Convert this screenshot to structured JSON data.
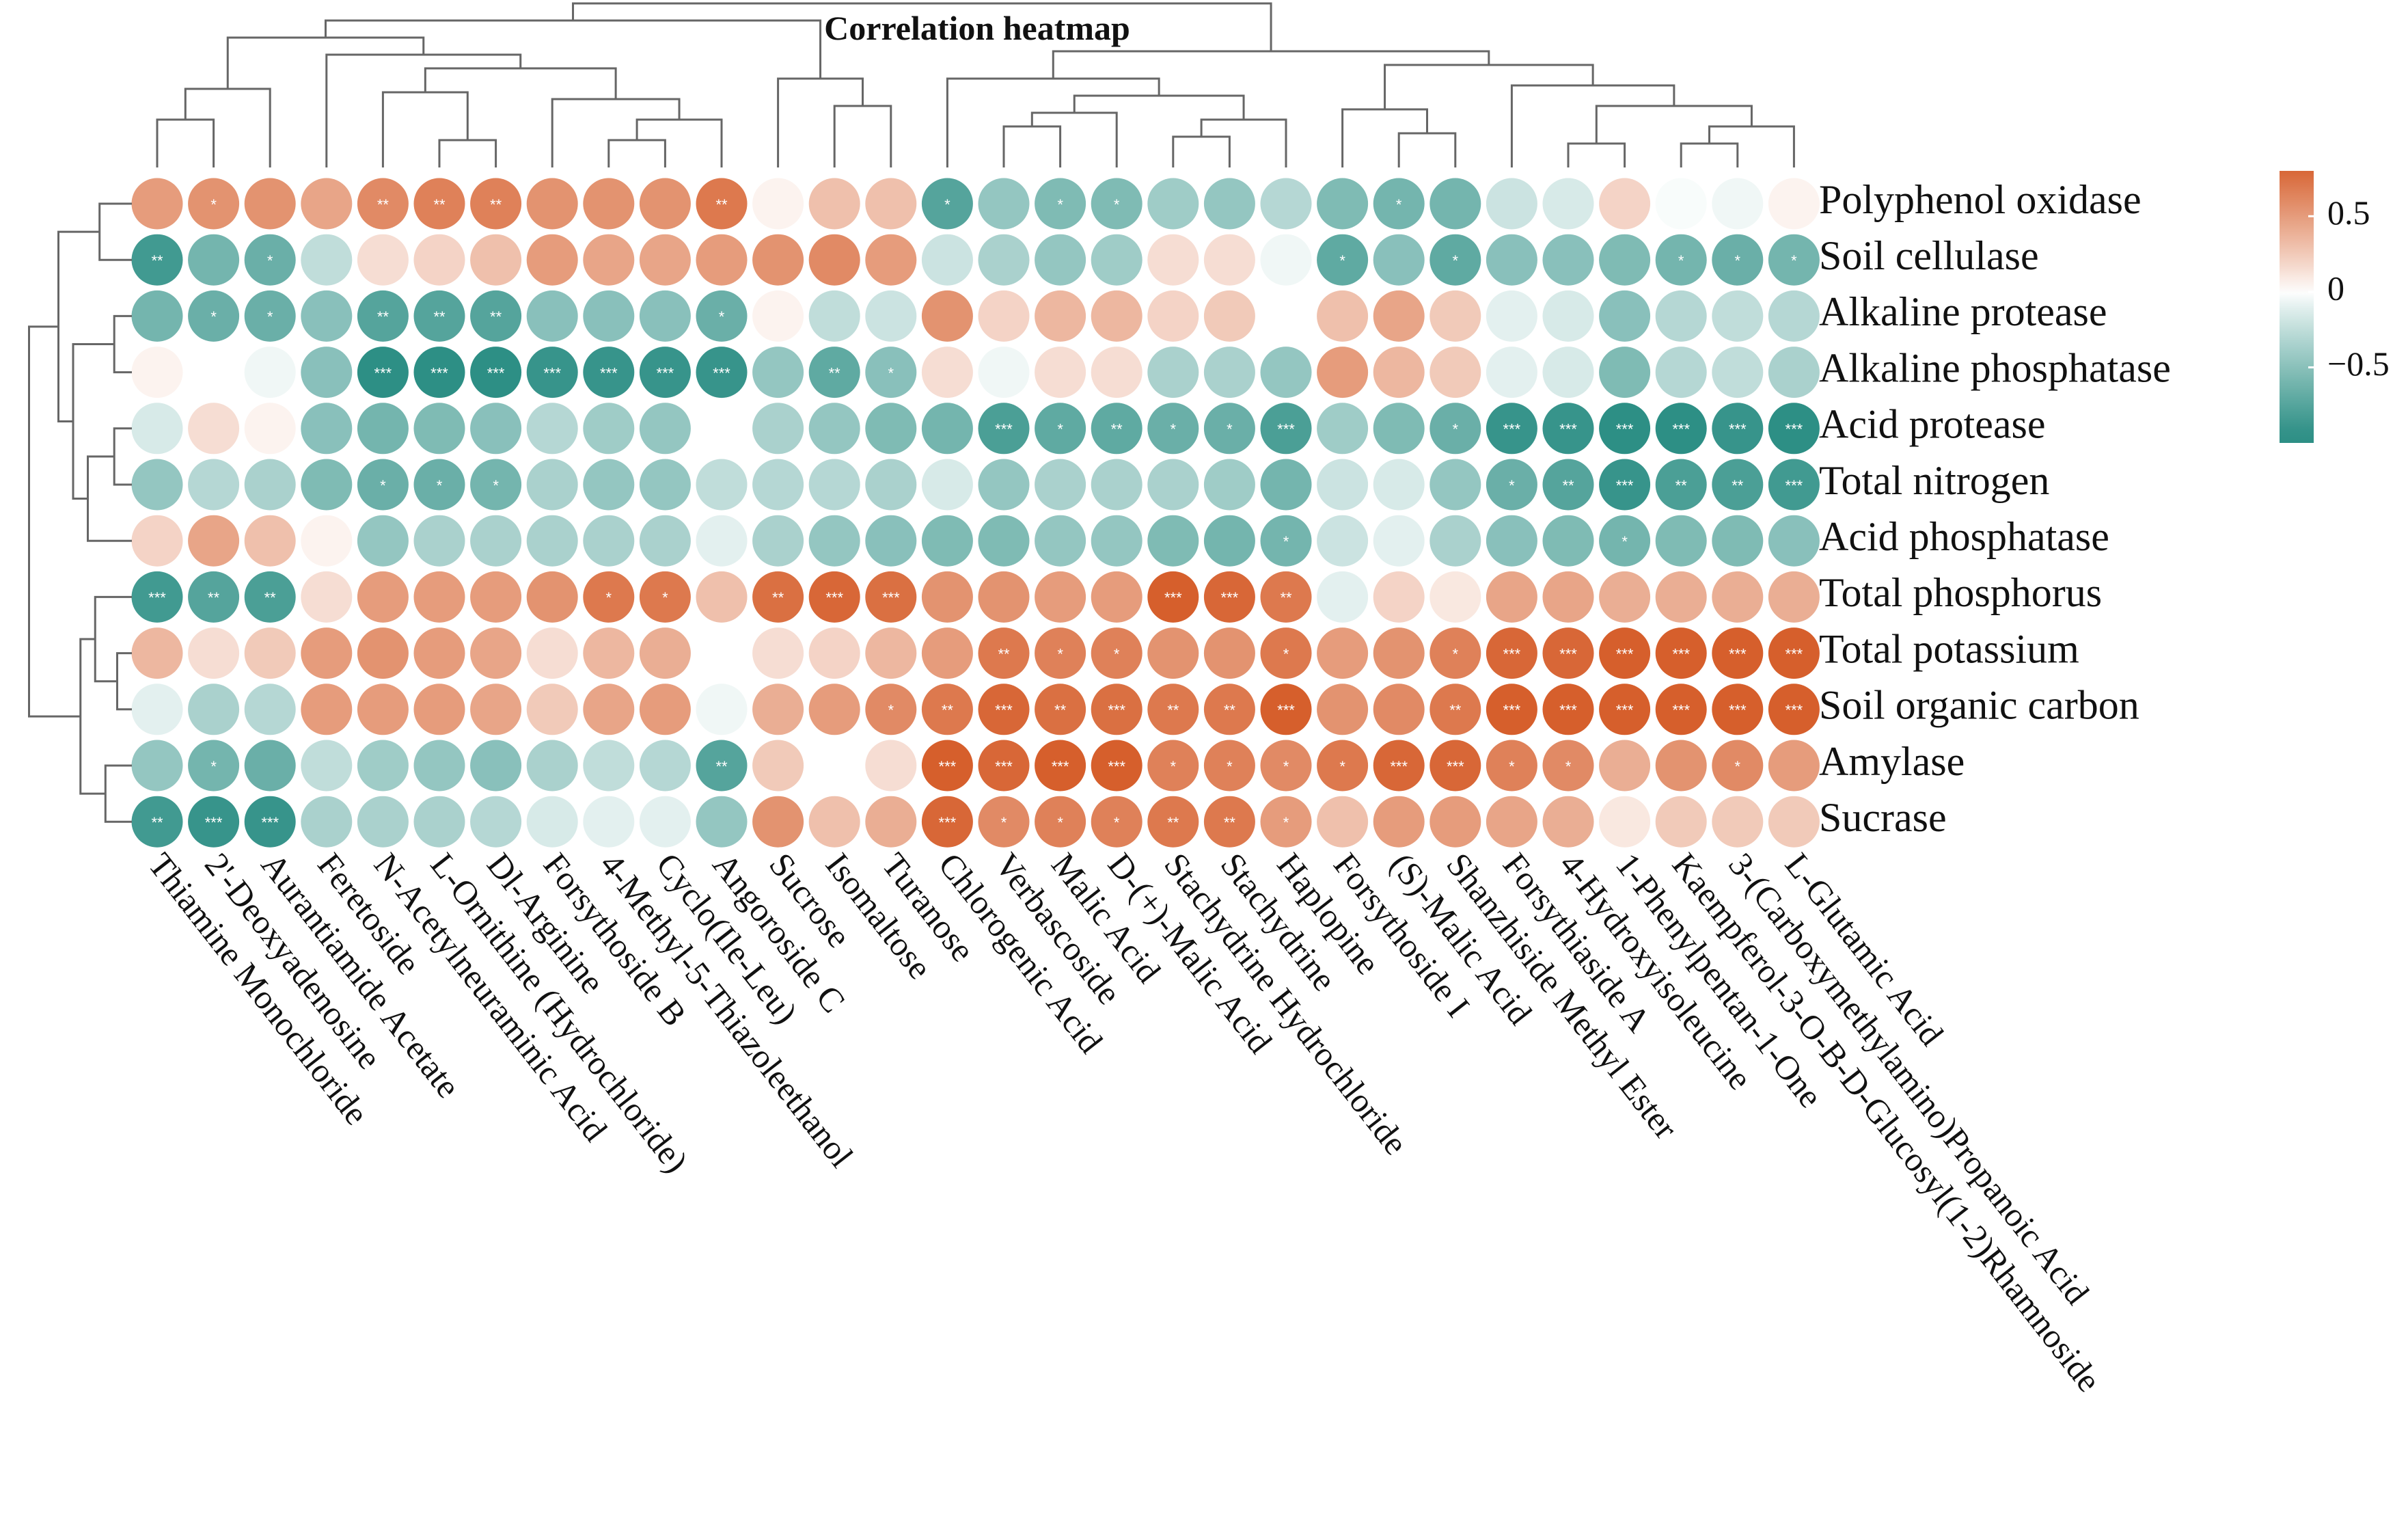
{
  "chart_data": {
    "type": "heatmap",
    "title": "Correlation heatmap",
    "x": [
      "Thiamine Monochloride",
      "2'-Deoxyadenosine",
      "Aurantiamide Acetate",
      "Feretoside",
      "N-Acetylneuraminic Acid",
      "L-Ornithine (Hydrochloride)",
      "Dl-Arginine",
      "Forsythoside B",
      "4-Methyl-5-Thiazoleethanol",
      "Cyclo(Ile-Leu)",
      "Angoroside C",
      "Sucrose",
      "Isomaltose",
      "Turanose",
      "Chlorogenic Acid",
      "Verbascoside",
      "Malic Acid",
      "D-(+)-Malic Acid",
      "Stachydrine Hydrochloride",
      "Stachydrine",
      "Haplopine",
      "Forsythoside I",
      "(S)-Malic Acid",
      "Shanzhiside Methyl Ester",
      "Forsythiaside A",
      "4-Hydroxyisoleucine",
      "1-Phenylpentan-1-One",
      "Kaempferol-3-O-B-D-Glucosyl(1-2)Rhamnoside",
      "3-(Carboxymethylamino)Propanoic Acid",
      "L-Glutamic Acid"
    ],
    "y": [
      "Polyphenol oxidase",
      "Soil cellulase",
      "Alkaline protease",
      "Alkaline phosphatase",
      "Acid protease",
      "Total nitrogen",
      "Acid phosphatase",
      "Total phosphorus",
      "Total potassium",
      "Soil organic carbon",
      "Amylase",
      "Sucrase"
    ],
    "values": [
      [
        0.5,
        0.55,
        0.55,
        0.45,
        0.6,
        0.65,
        0.65,
        0.55,
        0.55,
        0.55,
        0.7,
        0.05,
        0.3,
        0.3,
        -0.75,
        -0.45,
        -0.55,
        -0.55,
        -0.4,
        -0.45,
        -0.3,
        -0.55,
        -0.6,
        -0.6,
        -0.2,
        -0.15,
        0.2,
        -0.02,
        -0.05,
        0.05
      ],
      [
        -0.85,
        -0.6,
        -0.65,
        -0.25,
        0.15,
        0.2,
        0.3,
        0.5,
        0.45,
        0.45,
        0.5,
        0.55,
        0.6,
        0.5,
        -0.2,
        -0.35,
        -0.45,
        -0.4,
        0.15,
        0.15,
        -0.05,
        -0.7,
        -0.5,
        -0.7,
        -0.5,
        -0.5,
        -0.55,
        -0.6,
        -0.65,
        -0.6
      ],
      [
        -0.6,
        -0.65,
        -0.65,
        -0.5,
        -0.75,
        -0.75,
        -0.75,
        -0.5,
        -0.5,
        -0.5,
        -0.65,
        0.05,
        -0.25,
        -0.2,
        0.55,
        0.2,
        0.35,
        0.35,
        0.2,
        0.25,
        0.0,
        0.3,
        0.45,
        0.25,
        -0.1,
        -0.15,
        -0.5,
        -0.3,
        -0.25,
        -0.3
      ],
      [
        0.05,
        0.0,
        -0.05,
        -0.5,
        -0.95,
        -0.95,
        -0.95,
        -0.9,
        -0.9,
        -0.9,
        -0.9,
        -0.45,
        -0.7,
        -0.5,
        0.15,
        -0.05,
        0.15,
        0.15,
        -0.35,
        -0.35,
        -0.45,
        0.5,
        0.35,
        0.25,
        -0.1,
        -0.15,
        -0.55,
        -0.3,
        -0.25,
        -0.35
      ],
      [
        -0.15,
        0.15,
        0.05,
        -0.5,
        -0.6,
        -0.55,
        -0.5,
        -0.3,
        -0.4,
        -0.45,
        0.0,
        -0.35,
        -0.45,
        -0.55,
        -0.6,
        -0.8,
        -0.7,
        -0.7,
        -0.65,
        -0.65,
        -0.8,
        -0.4,
        -0.55,
        -0.65,
        -0.9,
        -0.9,
        -0.95,
        -0.95,
        -0.9,
        -0.95
      ],
      [
        -0.45,
        -0.3,
        -0.35,
        -0.55,
        -0.65,
        -0.65,
        -0.6,
        -0.35,
        -0.45,
        -0.45,
        -0.25,
        -0.3,
        -0.3,
        -0.35,
        -0.15,
        -0.45,
        -0.35,
        -0.35,
        -0.35,
        -0.4,
        -0.6,
        -0.2,
        -0.15,
        -0.45,
        -0.65,
        -0.75,
        -0.9,
        -0.8,
        -0.8,
        -0.85
      ],
      [
        0.2,
        0.45,
        0.3,
        0.05,
        -0.45,
        -0.35,
        -0.35,
        -0.35,
        -0.35,
        -0.35,
        -0.1,
        -0.35,
        -0.45,
        -0.5,
        -0.55,
        -0.55,
        -0.45,
        -0.45,
        -0.55,
        -0.6,
        -0.6,
        -0.2,
        -0.1,
        -0.35,
        -0.5,
        -0.55,
        -0.6,
        -0.55,
        -0.55,
        -0.5
      ],
      [
        -0.85,
        -0.75,
        -0.8,
        0.15,
        0.5,
        0.5,
        0.5,
        0.55,
        0.7,
        0.7,
        0.3,
        0.75,
        0.8,
        0.75,
        0.55,
        0.55,
        0.5,
        0.5,
        0.85,
        0.8,
        0.7,
        -0.1,
        0.2,
        0.1,
        0.45,
        0.45,
        0.4,
        0.4,
        0.4,
        0.4
      ],
      [
        0.35,
        0.15,
        0.25,
        0.5,
        0.55,
        0.5,
        0.45,
        0.15,
        0.35,
        0.4,
        0.0,
        0.15,
        0.2,
        0.35,
        0.5,
        0.7,
        0.65,
        0.65,
        0.55,
        0.55,
        0.7,
        0.5,
        0.55,
        0.65,
        0.8,
        0.8,
        0.85,
        0.85,
        0.85,
        0.85
      ],
      [
        -0.1,
        -0.35,
        -0.3,
        0.5,
        0.5,
        0.5,
        0.45,
        0.25,
        0.45,
        0.5,
        -0.05,
        0.4,
        0.5,
        0.6,
        0.7,
        0.8,
        0.75,
        0.75,
        0.7,
        0.7,
        0.85,
        0.55,
        0.6,
        0.7,
        0.85,
        0.85,
        0.85,
        0.85,
        0.85,
        0.85
      ],
      [
        -0.45,
        -0.6,
        -0.65,
        -0.25,
        -0.4,
        -0.45,
        -0.5,
        -0.35,
        -0.25,
        -0.3,
        -0.75,
        0.25,
        0.0,
        0.15,
        0.85,
        0.8,
        0.85,
        0.85,
        0.65,
        0.65,
        0.6,
        0.7,
        0.8,
        0.8,
        0.65,
        0.6,
        0.4,
        0.55,
        0.6,
        0.5
      ],
      [
        -0.85,
        -0.9,
        -0.9,
        -0.35,
        -0.35,
        -0.35,
        -0.3,
        -0.15,
        -0.1,
        -0.1,
        -0.45,
        0.55,
        0.3,
        0.4,
        0.8,
        0.6,
        0.65,
        0.65,
        0.7,
        0.7,
        0.5,
        0.3,
        0.5,
        0.5,
        0.45,
        0.4,
        0.1,
        0.25,
        0.25,
        0.25
      ]
    ],
    "significance": [
      [
        "",
        "*",
        "",
        "",
        "**",
        "**",
        "**",
        "",
        "",
        "",
        "**",
        "",
        "",
        "",
        "*",
        "",
        "*",
        "*",
        "",
        "",
        "",
        "",
        "*",
        "",
        "",
        "",
        "",
        "",
        "",
        ""
      ],
      [
        "**",
        "",
        "*",
        "",
        "",
        "",
        "",
        "",
        "",
        "",
        "",
        "",
        "",
        "",
        "",
        "",
        "",
        "",
        "",
        "",
        "",
        "*",
        "",
        "*",
        "",
        "",
        "",
        "*",
        "*",
        "*"
      ],
      [
        "",
        "*",
        "*",
        "",
        "**",
        "**",
        "**",
        "",
        "",
        "",
        "*",
        "",
        "",
        "",
        "",
        "",
        "",
        "",
        "",
        "",
        "",
        "",
        "",
        "",
        "",
        "",
        "",
        "",
        "",
        ""
      ],
      [
        "",
        "",
        "",
        "",
        "***",
        "***",
        "***",
        "***",
        "***",
        "***",
        "***",
        "",
        "**",
        "*",
        "",
        "",
        "",
        "",
        "",
        "",
        "",
        "",
        "",
        "",
        "",
        "",
        "",
        "",
        "",
        ""
      ],
      [
        "",
        "",
        "",
        "",
        "",
        "",
        "",
        "",
        "",
        "",
        "",
        "",
        "",
        "",
        "",
        "***",
        "*",
        "**",
        "*",
        "*",
        "***",
        "",
        "",
        "*",
        "***",
        "***",
        "***",
        "***",
        "***",
        "***"
      ],
      [
        "",
        "",
        "",
        "",
        "*",
        "*",
        "*",
        "",
        "",
        "",
        "",
        "",
        "",
        "",
        "",
        "",
        "",
        "",
        "",
        "",
        "",
        "",
        "",
        "",
        "*",
        "**",
        "***",
        "**",
        "**",
        "***"
      ],
      [
        "",
        "",
        "",
        "",
        "",
        "",
        "",
        "",
        "",
        "",
        "",
        "",
        "",
        "",
        "",
        "",
        "",
        "",
        "",
        "",
        "*",
        "",
        "",
        "",
        "",
        "",
        "*",
        "",
        "",
        ""
      ],
      [
        "***",
        "**",
        "**",
        "",
        "",
        "",
        "",
        "",
        "*",
        "*",
        "",
        "**",
        "***",
        "***",
        "",
        "",
        "",
        "",
        "***",
        "***",
        "**",
        "",
        "",
        "",
        "",
        "",
        "",
        "",
        "",
        ""
      ],
      [
        "",
        "",
        "",
        "",
        "",
        "",
        "",
        "",
        "",
        "",
        "",
        "",
        "",
        "",
        "",
        "**",
        "*",
        "*",
        "",
        "",
        "*",
        "",
        "",
        "*",
        "***",
        "***",
        "***",
        "***",
        "***",
        "***"
      ],
      [
        "",
        "",
        "",
        "",
        "",
        "",
        "",
        "",
        "",
        "",
        "",
        "",
        "",
        "*",
        "**",
        "***",
        "**",
        "***",
        "**",
        "**",
        "***",
        "",
        "",
        "**",
        "***",
        "***",
        "***",
        "***",
        "***",
        "***"
      ],
      [
        "",
        "*",
        "",
        "",
        "",
        "",
        "",
        "",
        "",
        "",
        "**",
        "",
        "",
        "",
        "***",
        "***",
        "***",
        "***",
        "*",
        "*",
        "*",
        "*",
        "***",
        "***",
        "*",
        "*",
        "",
        "",
        "*",
        ""
      ],
      [
        "**",
        "***",
        "***",
        "",
        "",
        "",
        "",
        "",
        "",
        "",
        "",
        "",
        "",
        "",
        "***",
        "*",
        "*",
        "*",
        "**",
        "**",
        "*",
        "",
        "",
        "",
        "",
        "",
        "",
        "",
        "",
        ""
      ]
    ],
    "colorbar": {
      "range": [
        -1,
        0.8
      ],
      "ticks": [
        {
          "value": 0.5,
          "label": "0.5"
        },
        {
          "value": 0,
          "label": "0"
        },
        {
          "value": -0.5,
          "label": "−0.5"
        }
      ]
    },
    "colors": {
      "positive": "#D65F2C",
      "neutral": "#FFFFFF",
      "negative": "#2D8F85",
      "dendrogram": "#666666",
      "significance_text": "#FFFFFF"
    },
    "dendrogram_top": [
      [
        0,
        1,
        0.14
      ],
      [
        2,
        30,
        0.23
      ],
      [
        5,
        6,
        0.08
      ],
      [
        8,
        9,
        0.08
      ],
      [
        33,
        10,
        0.14
      ],
      [
        7,
        34,
        0.2
      ],
      [
        4,
        32,
        0.22
      ],
      [
        36,
        35,
        0.29
      ],
      [
        3,
        37,
        0.33
      ],
      [
        31,
        38,
        0.38
      ],
      [
        12,
        13,
        0.18
      ],
      [
        11,
        40,
        0.26
      ],
      [
        39,
        41,
        0.43
      ],
      [
        15,
        16,
        0.12
      ],
      [
        17,
        43,
        0.16
      ],
      [
        18,
        19,
        0.09
      ],
      [
        20,
        45,
        0.14
      ],
      [
        44,
        46,
        0.21
      ],
      [
        14,
        47,
        0.26
      ],
      [
        22,
        23,
        0.1
      ],
      [
        21,
        49,
        0.17
      ],
      [
        25,
        26,
        0.07
      ],
      [
        27,
        28,
        0.07
      ],
      [
        52,
        29,
        0.12
      ],
      [
        51,
        53,
        0.18
      ],
      [
        24,
        54,
        0.24
      ],
      [
        50,
        55,
        0.3
      ],
      [
        48,
        56,
        0.34
      ],
      [
        42,
        57,
        0.48
      ]
    ],
    "dendrogram_left": [
      [
        0,
        1,
        0.22
      ],
      [
        2,
        3,
        0.12
      ],
      [
        4,
        5,
        0.12
      ],
      [
        14,
        6,
        0.3
      ],
      [
        13,
        15,
        0.4
      ],
      [
        12,
        16,
        0.5
      ],
      [
        8,
        9,
        0.1
      ],
      [
        7,
        18,
        0.25
      ],
      [
        10,
        11,
        0.18
      ],
      [
        19,
        20,
        0.35
      ],
      [
        17,
        21,
        0.7
      ]
    ]
  }
}
